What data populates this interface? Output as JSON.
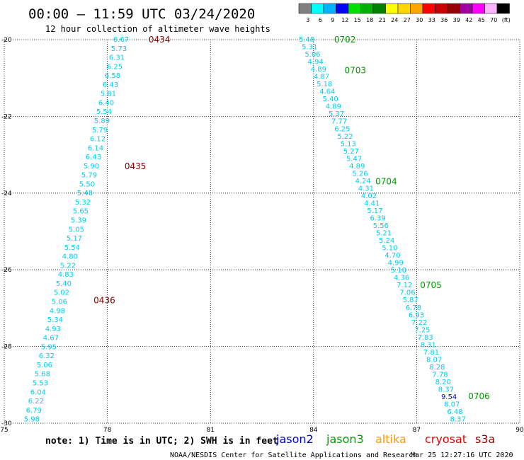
{
  "header": {
    "title": "00:00 – 11:59 UTC 03/24/2020",
    "subtitle": "12 hour collection of altimeter wave heights"
  },
  "colorbar": {
    "colors": [
      "#808080",
      "#00ffff",
      "#00b4ff",
      "#0000ff",
      "#00e000",
      "#00b000",
      "#008000",
      "#ffff00",
      "#ffd700",
      "#ffa500",
      "#ff0000",
      "#c80000",
      "#960000",
      "#a000a0",
      "#ff00ff",
      "#ffb4ff",
      "#000000"
    ],
    "labels": [
      "3",
      "6",
      "9",
      "12",
      "15",
      "18",
      "21",
      "24",
      "27",
      "30",
      "33",
      "36",
      "39",
      "42",
      "45",
      "70",
      "(ft)"
    ]
  },
  "footer": {
    "note": "note:  1) Time is in UTC; 2) SWH is in feet",
    "credit": "NOAA/NESDIS Center for Satellite Applications and Research",
    "timestamp": "Mar 25 12:27:16 UTC 2020"
  },
  "legend": [
    {
      "name": "jason2",
      "color": "#0000cc"
    },
    {
      "name": "jason3",
      "color": "#009900"
    },
    {
      "name": "altika",
      "color": "#ff9900"
    },
    {
      "name": "cryosat",
      "color": "#dd0000"
    },
    {
      "name": "s3a",
      "color": "#990000"
    }
  ],
  "chart_data": {
    "type": "scatter",
    "xlim": [
      75,
      90
    ],
    "ylim": [
      -30,
      -20
    ],
    "xticks": [
      "75",
      "78",
      "81",
      "84",
      "87",
      "90"
    ],
    "yticks": [
      "-20",
      "-22",
      "-24",
      "-26",
      "-28",
      "-30"
    ],
    "grid": true,
    "tracks": [
      {
        "satellite": "s3a",
        "color": "#00ccee",
        "start": [
          78.4,
          -20.0
        ],
        "end": [
          75.8,
          -29.9
        ],
        "values": [
          "6.67",
          "5.73",
          "6.31",
          "6.25",
          "6.58",
          "6.43",
          "5.81",
          "6.40",
          "5.54",
          "5.89",
          "5.79",
          "6.12",
          "6.14",
          "6.43",
          "5.90",
          "5.79",
          "5.50",
          "5.48",
          "5.32",
          "5.65",
          "5.39",
          "5.05",
          "5.17",
          "5.54",
          "4.80",
          "5.22",
          "4.83",
          "5.40",
          "5.02",
          "5.06",
          "4.98",
          "5.34",
          "4.93",
          "4.67",
          "5.95",
          "6.32",
          "5.06",
          "5.68",
          "5.53",
          "6.04",
          "6.22",
          "6.79",
          "5.98"
        ],
        "time_labels": [
          {
            "text": "0434",
            "lat": -20.0,
            "lon": 79.2,
            "color": "#880000"
          },
          {
            "text": "0435",
            "lat": -23.3,
            "lon": 78.5,
            "color": "#880000"
          },
          {
            "text": "0436",
            "lat": -26.8,
            "lon": 77.6,
            "color": "#880000"
          }
        ]
      },
      {
        "satellite": "jason3",
        "color": "#00ccee",
        "start": [
          83.8,
          -20.0
        ],
        "end": [
          88.2,
          -29.9
        ],
        "values": [
          "5.48",
          "5.31",
          "5.06",
          "4.94",
          "4.89",
          "4.87",
          "5.18",
          "4.64",
          "5.40",
          "4.89",
          "5.37",
          "7.77",
          "6.25",
          "5.22",
          "5.13",
          "5.27",
          "5.47",
          "4.89",
          "5.26",
          "4.24",
          "4.31",
          "4.02",
          "4.41",
          "5.17",
          "6.39",
          "5.56",
          "5.21",
          "5.24",
          "5.10",
          "4.70",
          "4.99",
          "5.10",
          "4.36",
          "7.12",
          "7.06",
          "5.87",
          "6.78",
          "6.93",
          "7.22",
          "7.25",
          "7.83",
          "8.31",
          "7.81",
          "8.07",
          "8.28",
          "7.78",
          "8.20",
          "8.37",
          "9.54",
          "8.07",
          "6.48",
          "8.37"
        ],
        "highlight_value": "9.54",
        "highlight_color": "#0000cc",
        "time_labels": [
          {
            "text": "0702",
            "lat": -20.0,
            "lon": 84.6,
            "color": "#009900"
          },
          {
            "text": "0703",
            "lat": -20.8,
            "lon": 84.9,
            "color": "#009900"
          },
          {
            "text": "0704",
            "lat": -23.7,
            "lon": 85.8,
            "color": "#009900"
          },
          {
            "text": "0705",
            "lat": -26.4,
            "lon": 87.1,
            "color": "#009900"
          },
          {
            "text": "0706",
            "lat": -29.3,
            "lon": 88.5,
            "color": "#009900"
          }
        ]
      }
    ]
  }
}
